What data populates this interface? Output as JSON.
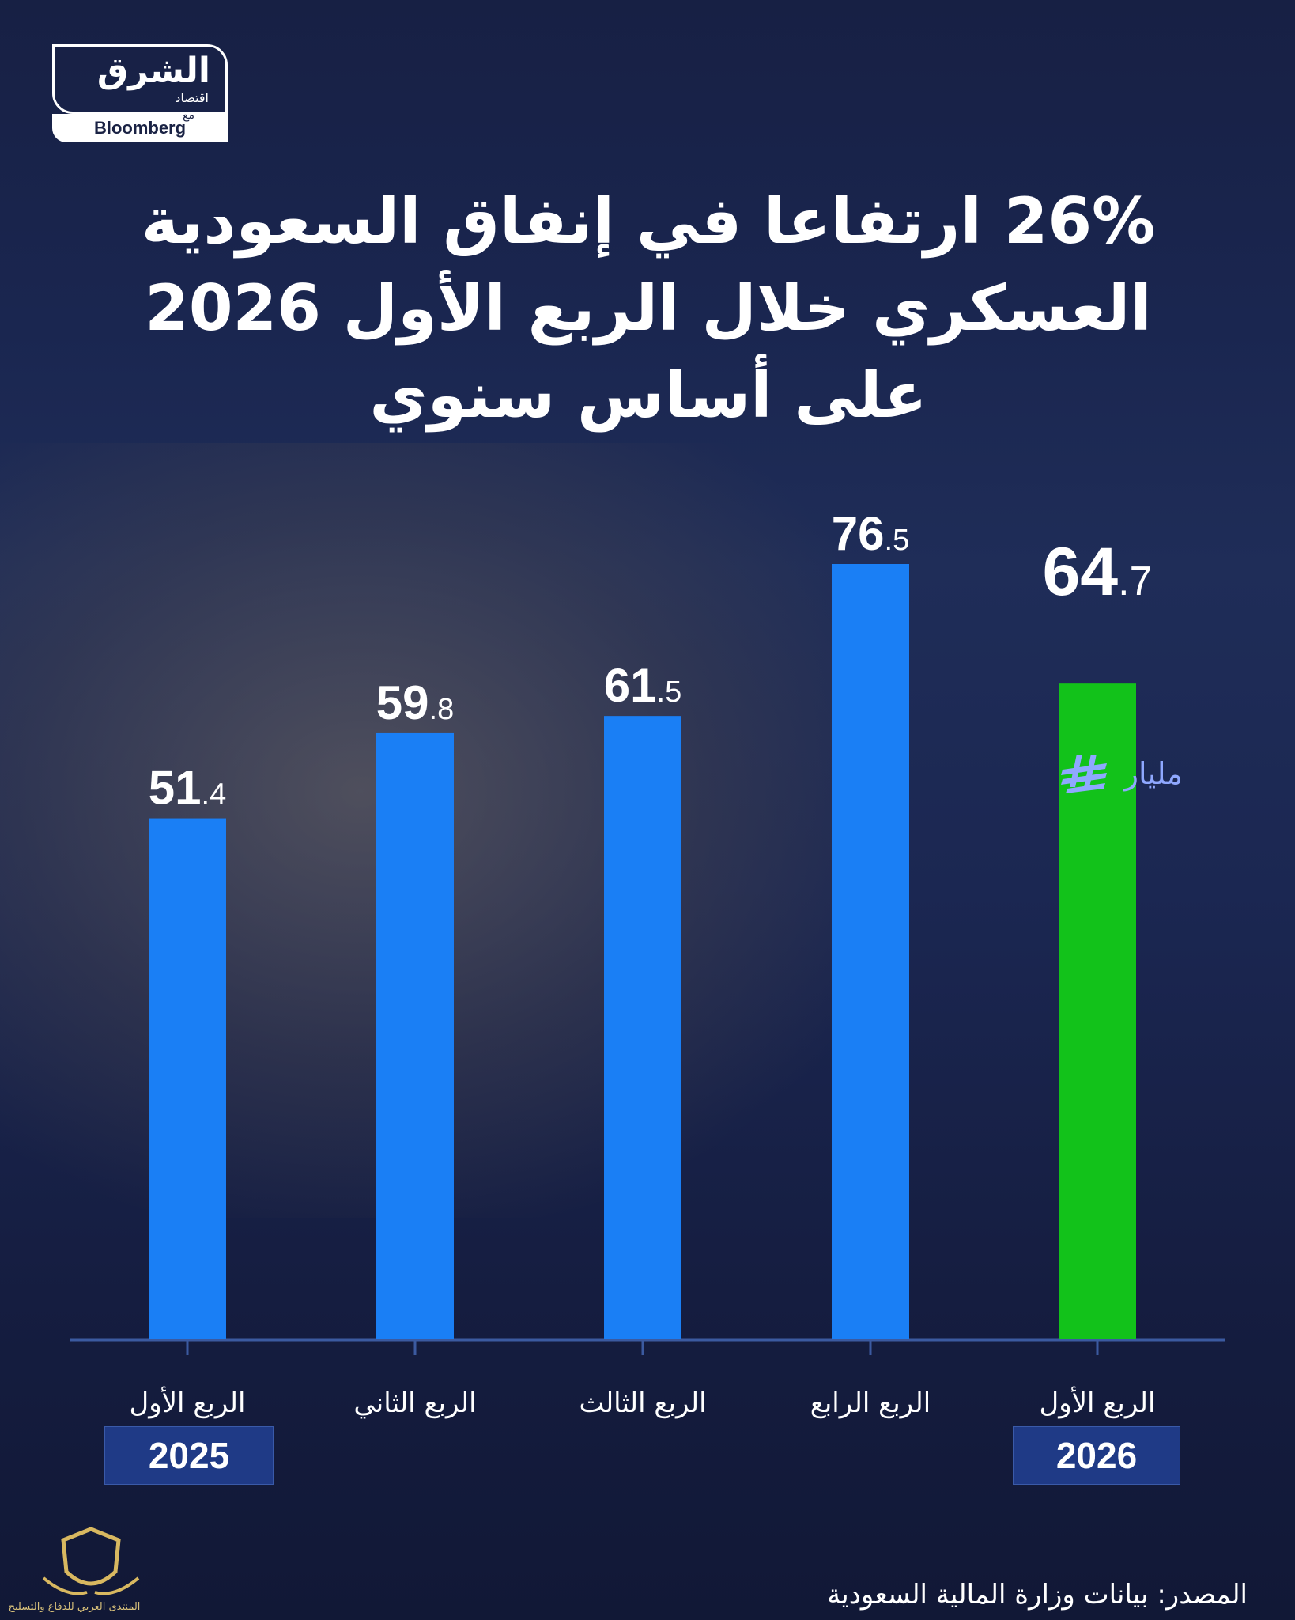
{
  "logo": {
    "main": "الشرق",
    "sub": "اقتصاد",
    "with": "مع",
    "partner": "Bloomberg"
  },
  "title_lines": [
    "26% ارتفاعا في إنفاق السعودية",
    "العسكري خلال الربع الأول 2026",
    "على أساس سنوي"
  ],
  "unit": {
    "label": "مليار",
    "currency_icon": "saudi-riyal-icon"
  },
  "years": {
    "left": "2025",
    "right": "2026"
  },
  "source": "المصدر: بيانات وزارة المالية السعودية",
  "watermark_text": "المنتدى العربي للدفاع والتسليح",
  "colors": {
    "bar_blue": "#1a7ff5",
    "bar_green": "#12c21a",
    "unit_blue": "#8fa8ff",
    "axis": "#3b5aa0"
  },
  "chart_data": {
    "type": "bar",
    "categories": [
      "الربع الأول",
      "الربع الثاني",
      "الربع الثالث",
      "الربع الرابع",
      "الربع الأول"
    ],
    "values": [
      51.4,
      59.8,
      61.5,
      76.5,
      64.7
    ],
    "value_labels": [
      {
        "int": "51",
        "dec": ".4"
      },
      {
        "int": "59",
        "dec": ".8"
      },
      {
        "int": "61",
        "dec": ".5"
      },
      {
        "int": "76",
        "dec": ".5"
      },
      {
        "int": "64",
        "dec": ".7"
      }
    ],
    "bar_colors": [
      "#1a7ff5",
      "#1a7ff5",
      "#1a7ff5",
      "#1a7ff5",
      "#12c21a"
    ],
    "ylim": [
      0,
      76.5
    ],
    "grid": false
  }
}
